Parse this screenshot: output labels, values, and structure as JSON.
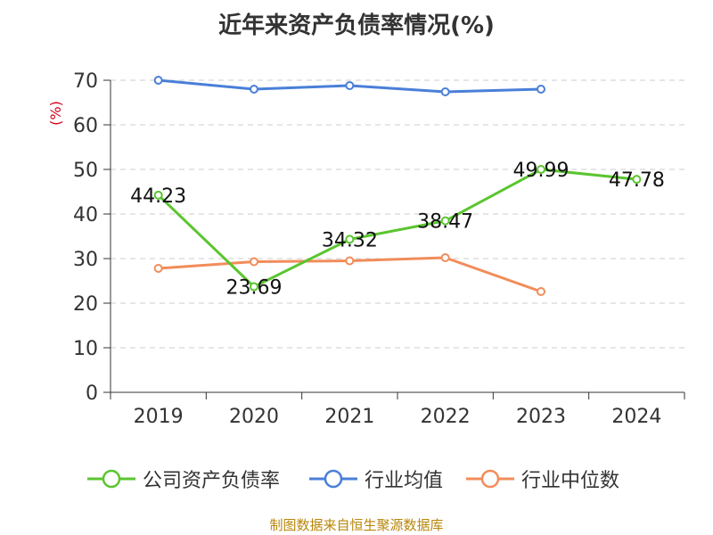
{
  "title": "近年来资产负债率情况(%)",
  "source": "制图数据来自恒生聚源数据库",
  "chart_data": {
    "type": "line",
    "title": "近年来资产负债率情况(%)",
    "xlabel": "",
    "ylabel": "(%)",
    "categories": [
      "2019",
      "2020",
      "2021",
      "2022",
      "2023",
      "2024"
    ],
    "ylim": [
      0,
      70
    ],
    "yticks": [
      0,
      10,
      20,
      30,
      40,
      50,
      60,
      70
    ],
    "grid": true,
    "legend_position": "bottom",
    "series": [
      {
        "name": "公司资产负债率",
        "color": "#5ac52f",
        "values": [
          44.23,
          23.69,
          34.32,
          38.47,
          49.99,
          47.78
        ],
        "labels": [
          "44.23",
          "23.69",
          "34.32",
          "38.47",
          "49.99",
          "47.78"
        ]
      },
      {
        "name": "行业均值",
        "color": "#4a7fd8",
        "values": [
          70.0,
          68.0,
          68.8,
          67.4,
          68.0,
          null
        ]
      },
      {
        "name": "行业中位数",
        "color": "#f28c5a",
        "values": [
          27.8,
          29.3,
          29.5,
          30.2,
          22.6,
          null
        ]
      }
    ]
  }
}
